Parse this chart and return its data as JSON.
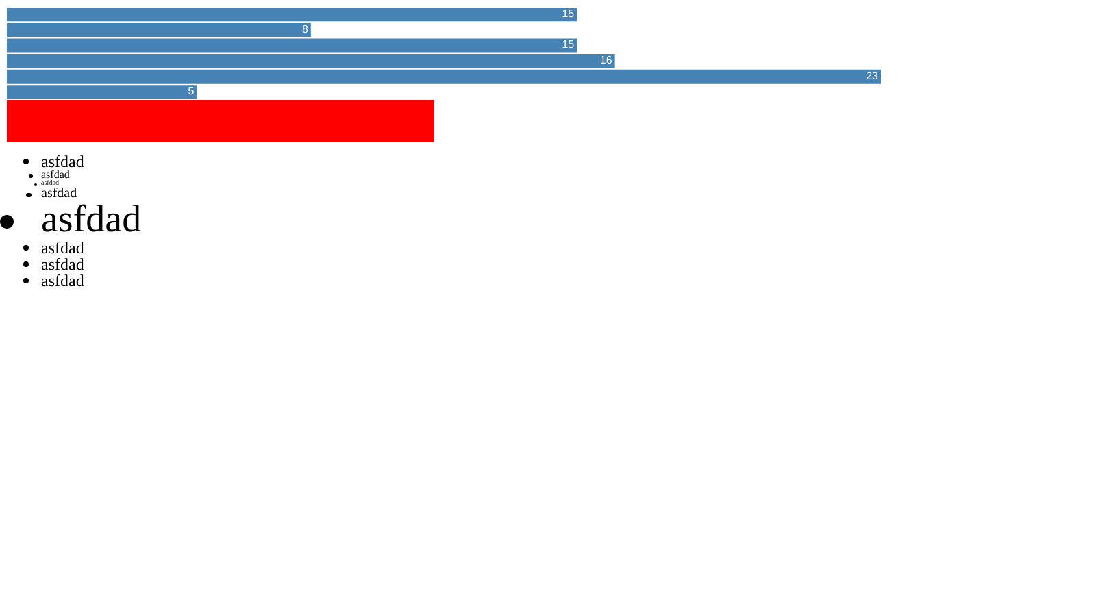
{
  "chart_data": {
    "type": "bar",
    "orientation": "horizontal",
    "categories": [
      null,
      null,
      null,
      null,
      null,
      null
    ],
    "values": [
      15,
      8,
      15,
      16,
      23,
      5
    ],
    "color": "#4682b4",
    "data_labels": true,
    "tick_labels": false,
    "annotations": [
      "asfdad",
      "asfdad",
      "asfdad",
      "asfdad",
      "asfdad",
      "asfdad",
      "asfdad",
      "asfdad"
    ]
  }
}
